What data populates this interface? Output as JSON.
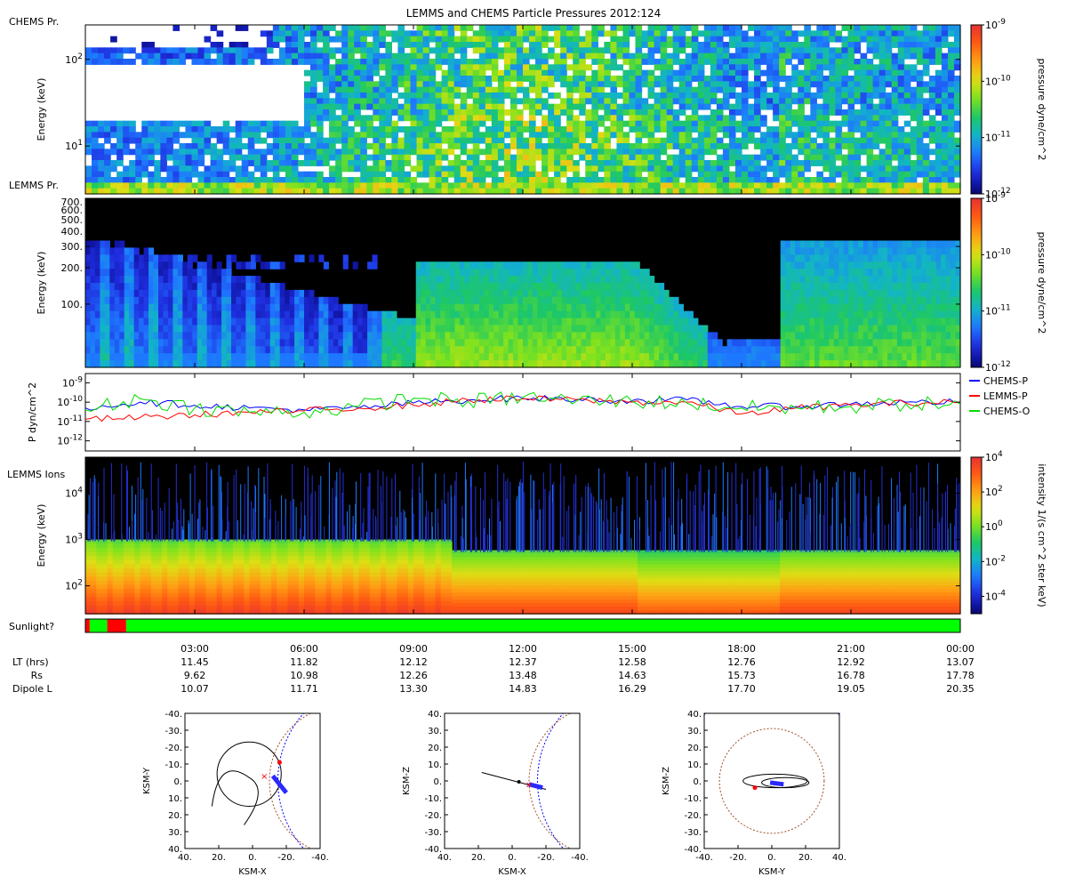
{
  "title": "LEMMS and CHEMS Particle Pressures  2012:124",
  "colors": {
    "spectrogram": [
      "#000000",
      "#0a0a8a",
      "#1f2fe0",
      "#1e78ff",
      "#12b4c8",
      "#1ec864",
      "#7ee21e",
      "#dede14",
      "#ffa014",
      "#ff5a12",
      "#e63232"
    ],
    "chems_line": "#0000ff",
    "lemms_line": "#ff0000",
    "chemso_line": "#00dd00",
    "sunlight_on": "#00ff00",
    "sunlight_off": "#ff0000",
    "orbit_blue": "#2a2aff",
    "orbit_red": "#ff0000",
    "circle_brown": "#a0522d",
    "circle_blue": "#0000ff"
  },
  "chart_data": [
    {
      "type": "heatmap",
      "label": "CHEMS Pr.",
      "ylabel": "Energy (keV)",
      "yscale": "log",
      "ylim": [
        2.8,
        250
      ],
      "yticks": [
        {
          "value": 10,
          "label": "10^1"
        },
        {
          "value": 100,
          "label": "10^2"
        }
      ],
      "colorbar": {
        "label": "pressure dyne/cm^2",
        "scale": "log",
        "range": [
          1e-12,
          1e-09
        ],
        "ticks": [
          {
            "value": 1e-09,
            "label": "10^-9"
          },
          {
            "value": 1e-10,
            "label": "10^-10"
          },
          {
            "value": 1e-11,
            "label": "10^-11"
          },
          {
            "value": 1e-12,
            "label": "10^-12"
          }
        ]
      }
    },
    {
      "type": "heatmap",
      "label": "LEMMS Pr.",
      "ylabel": "Energy (keV)",
      "yscale": "log",
      "ylim": [
        30,
        750
      ],
      "yticks": [
        {
          "value": 100,
          "label": "100."
        },
        {
          "value": 200,
          "label": "200."
        },
        {
          "value": 300,
          "label": "300."
        },
        {
          "value": 400,
          "label": "400."
        },
        {
          "value": 500,
          "label": "500."
        },
        {
          "value": 600,
          "label": "600."
        },
        {
          "value": 700,
          "label": "700."
        }
      ],
      "colorbar": {
        "label": "pressure dyne/cm^2",
        "scale": "log",
        "range": [
          1e-12,
          1e-09
        ],
        "ticks": [
          {
            "value": 1e-09,
            "label": "10^-9"
          },
          {
            "value": 1e-10,
            "label": "10^-10"
          },
          {
            "value": 1e-11,
            "label": "10^-11"
          },
          {
            "value": 1e-12,
            "label": "10^-12"
          }
        ]
      }
    },
    {
      "type": "line",
      "ylabel": "P dyn/cm^2",
      "yscale": "log",
      "ylim": [
        3e-13,
        3e-09
      ],
      "yticks": [
        {
          "value": 1e-09,
          "label": "10^-9"
        },
        {
          "value": 1e-10,
          "label": "10^-10"
        },
        {
          "value": 1e-11,
          "label": "10^-11"
        },
        {
          "value": 1e-12,
          "label": "10^-12"
        }
      ],
      "x": [
        0,
        1.5,
        3,
        4.5,
        6,
        7.5,
        9,
        10.5,
        12,
        13.5,
        15,
        16.5,
        18,
        19.5,
        21,
        22.5,
        24
      ],
      "series": [
        {
          "name": "CHEMS-P",
          "color_key": "chems_line",
          "values": [
            5e-11,
            1e-10,
            7e-11,
            5e-11,
            4e-11,
            5e-11,
            9e-11,
            1.3e-10,
            1.6e-10,
            1.4e-10,
            1.2e-10,
            1.3e-10,
            6e-11,
            6e-11,
            8e-11,
            1e-10,
            1e-10
          ]
        },
        {
          "name": "LEMMS-P",
          "color_key": "lemms_line",
          "values": [
            1.3e-11,
            1.6e-11,
            2.2e-11,
            3e-11,
            3.5e-11,
            5e-11,
            7e-11,
            1.3e-10,
            1.5e-10,
            1.3e-10,
            1e-10,
            1e-10,
            2.5e-11,
            5e-11,
            7e-11,
            9e-11,
            1e-10
          ]
        },
        {
          "name": "CHEMS-O",
          "color_key": "chemso_line",
          "values": [
            4e-11,
            1.5e-10,
            5e-11,
            3e-11,
            3e-11,
            6e-11,
            1.6e-10,
            1.1e-10,
            1.8e-10,
            1.2e-10,
            1.1e-10,
            9e-11,
            5e-11,
            5e-11,
            6e-11,
            8e-11,
            8e-11
          ]
        }
      ]
    },
    {
      "type": "heatmap",
      "label": "LEMMS Ions",
      "ylabel": "Energy (keV)",
      "yscale": "log",
      "ylim": [
        25,
        60000
      ],
      "yticks": [
        {
          "value": 100,
          "label": "10^2"
        },
        {
          "value": 1000,
          "label": "10^3"
        },
        {
          "value": 10000,
          "label": "10^4"
        }
      ],
      "colorbar": {
        "label": "intensity 1/(s cm^2 ster keV)",
        "scale": "log",
        "range": [
          1e-05,
          10000.0
        ],
        "ticks": [
          {
            "value": 10000.0,
            "label": "10^4"
          },
          {
            "value": 100,
            "label": "10^2"
          },
          {
            "value": 1,
            "label": "10^0"
          },
          {
            "value": 0.01,
            "label": "10^-2"
          },
          {
            "value": 0.0001,
            "label": "10^-4"
          }
        ]
      }
    }
  ],
  "sunlight": {
    "label": "Sunlight?",
    "segments": [
      {
        "start": 0.0,
        "end": 0.12,
        "state": "off"
      },
      {
        "start": 0.12,
        "end": 0.6,
        "state": "on"
      },
      {
        "start": 0.6,
        "end": 1.12,
        "state": "off"
      },
      {
        "start": 1.12,
        "end": 24,
        "state": "on"
      }
    ]
  },
  "time_axis": {
    "ticks": [
      {
        "hour": 3,
        "label": "03:00",
        "lt": "11.45",
        "rs": "9.62",
        "dipole_l": "10.07"
      },
      {
        "hour": 6,
        "label": "06:00",
        "lt": "11.82",
        "rs": "10.98",
        "dipole_l": "11.71"
      },
      {
        "hour": 9,
        "label": "09:00",
        "lt": "12.12",
        "rs": "12.26",
        "dipole_l": "13.30"
      },
      {
        "hour": 12,
        "label": "12:00",
        "lt": "12.37",
        "rs": "13.48",
        "dipole_l": "14.83"
      },
      {
        "hour": 15,
        "label": "15:00",
        "lt": "12.58",
        "rs": "14.63",
        "dipole_l": "16.29"
      },
      {
        "hour": 18,
        "label": "18:00",
        "lt": "12.76",
        "rs": "15.73",
        "dipole_l": "17.70"
      },
      {
        "hour": 21,
        "label": "21:00",
        "lt": "12.92",
        "rs": "16.78",
        "dipole_l": "19.05"
      },
      {
        "hour": 24,
        "label": "00:00",
        "lt": "13.07",
        "rs": "17.78",
        "dipole_l": "20.35"
      }
    ],
    "row_labels": {
      "lt": "LT (hrs)",
      "rs": "Rs",
      "dipole": "Dipole L"
    }
  },
  "orbit_plots": [
    {
      "xlabel": "KSM-X",
      "ylabel": "KSM-Y",
      "xticks": [
        "40.",
        "20.",
        "0.",
        "-20.",
        "-40."
      ],
      "yticks": [
        "-40.",
        "-30.",
        "-20.",
        "-10.",
        "0.",
        "10.",
        "20.",
        "30.",
        "40."
      ]
    },
    {
      "xlabel": "KSM-X",
      "ylabel": "KSM-Z",
      "xticks": [
        "40.",
        "20.",
        "0.",
        "-20.",
        "-40."
      ],
      "yticks": [
        "40.",
        "30.",
        "20.",
        "10.",
        "0.",
        "-10.",
        "-20.",
        "-30.",
        "-40."
      ]
    },
    {
      "xlabel": "KSM-Y",
      "ylabel": "KSM-Z",
      "xticks": [
        "-40.",
        "-20.",
        "0.",
        "20.",
        "40."
      ],
      "yticks": [
        "40.",
        "30.",
        "20.",
        "10.",
        "0.",
        "-10.",
        "-20.",
        "-30.",
        "-40."
      ]
    }
  ]
}
